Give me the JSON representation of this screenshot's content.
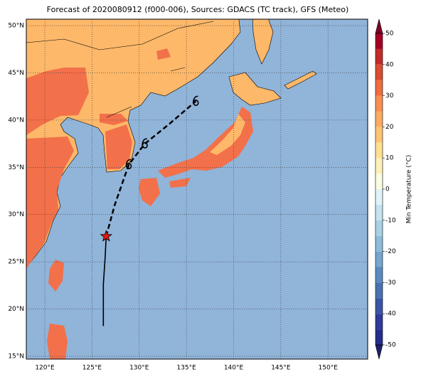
{
  "title": "Forecast of 2020080912 (f000-006), Sources: GDACS (TC track), GFS (Meteo)",
  "map": {
    "xlim": [
      118.04,
      154.2
    ],
    "ylim": [
      14.7,
      50.68
    ],
    "xticks": [
      {
        "value": 120,
        "label": "120°E"
      },
      {
        "value": 125,
        "label": "125°E"
      },
      {
        "value": 130,
        "label": "130°E"
      },
      {
        "value": 135,
        "label": "135°E"
      },
      {
        "value": 140,
        "label": "140°E"
      },
      {
        "value": 145,
        "label": "145°E"
      },
      {
        "value": 150,
        "label": "150°E"
      }
    ],
    "yticks": [
      {
        "value": 15,
        "label": "15°N"
      },
      {
        "value": 20,
        "label": "20°N"
      },
      {
        "value": 25,
        "label": "25°N"
      },
      {
        "value": 30,
        "label": "30°N"
      },
      {
        "value": 35,
        "label": "35°N"
      },
      {
        "value": 40,
        "label": "40°N"
      },
      {
        "value": 45,
        "label": "45°N"
      },
      {
        "value": 50,
        "label": "50°N"
      }
    ],
    "grid": true,
    "ocean_color": "#91b4d9",
    "track": {
      "observed": {
        "lon": [
          126.2,
          126.2,
          126.4,
          126.5
        ],
        "lat": [
          18.2,
          22.6,
          25.6,
          27.7
        ],
        "color": "#000000"
      },
      "forecast": {
        "lon": [
          126.5,
          127.4,
          128.9,
          130.6,
          133.2,
          136.0
        ],
        "lat": [
          27.7,
          31.0,
          35.3,
          37.5,
          39.6,
          42.0
        ],
        "color": "#000000"
      },
      "current_marker_color": "#e8190e"
    }
  },
  "colorbar": {
    "label": "Min Temperature (°C)",
    "lim": [
      -50,
      50
    ],
    "ticks": [
      -50,
      -40,
      -30,
      -20,
      -10,
      0,
      10,
      20,
      30,
      40,
      50
    ],
    "colors": [
      "#262d8c",
      "#313b9a",
      "#3b55a5",
      "#4a72b2",
      "#5a8bc0",
      "#74a6cf",
      "#8ebcdb",
      "#a9d1e5",
      "#c4e3ef",
      "#e0f3f8",
      "#fbfde0",
      "#fef0b8",
      "#fee090",
      "#fdc473",
      "#fcab62",
      "#f88e52",
      "#ef6d3f",
      "#dd4a30",
      "#c62a27",
      "#a50026"
    ],
    "extend_colors": [
      "#1e1f6e",
      "#800026"
    ]
  }
}
